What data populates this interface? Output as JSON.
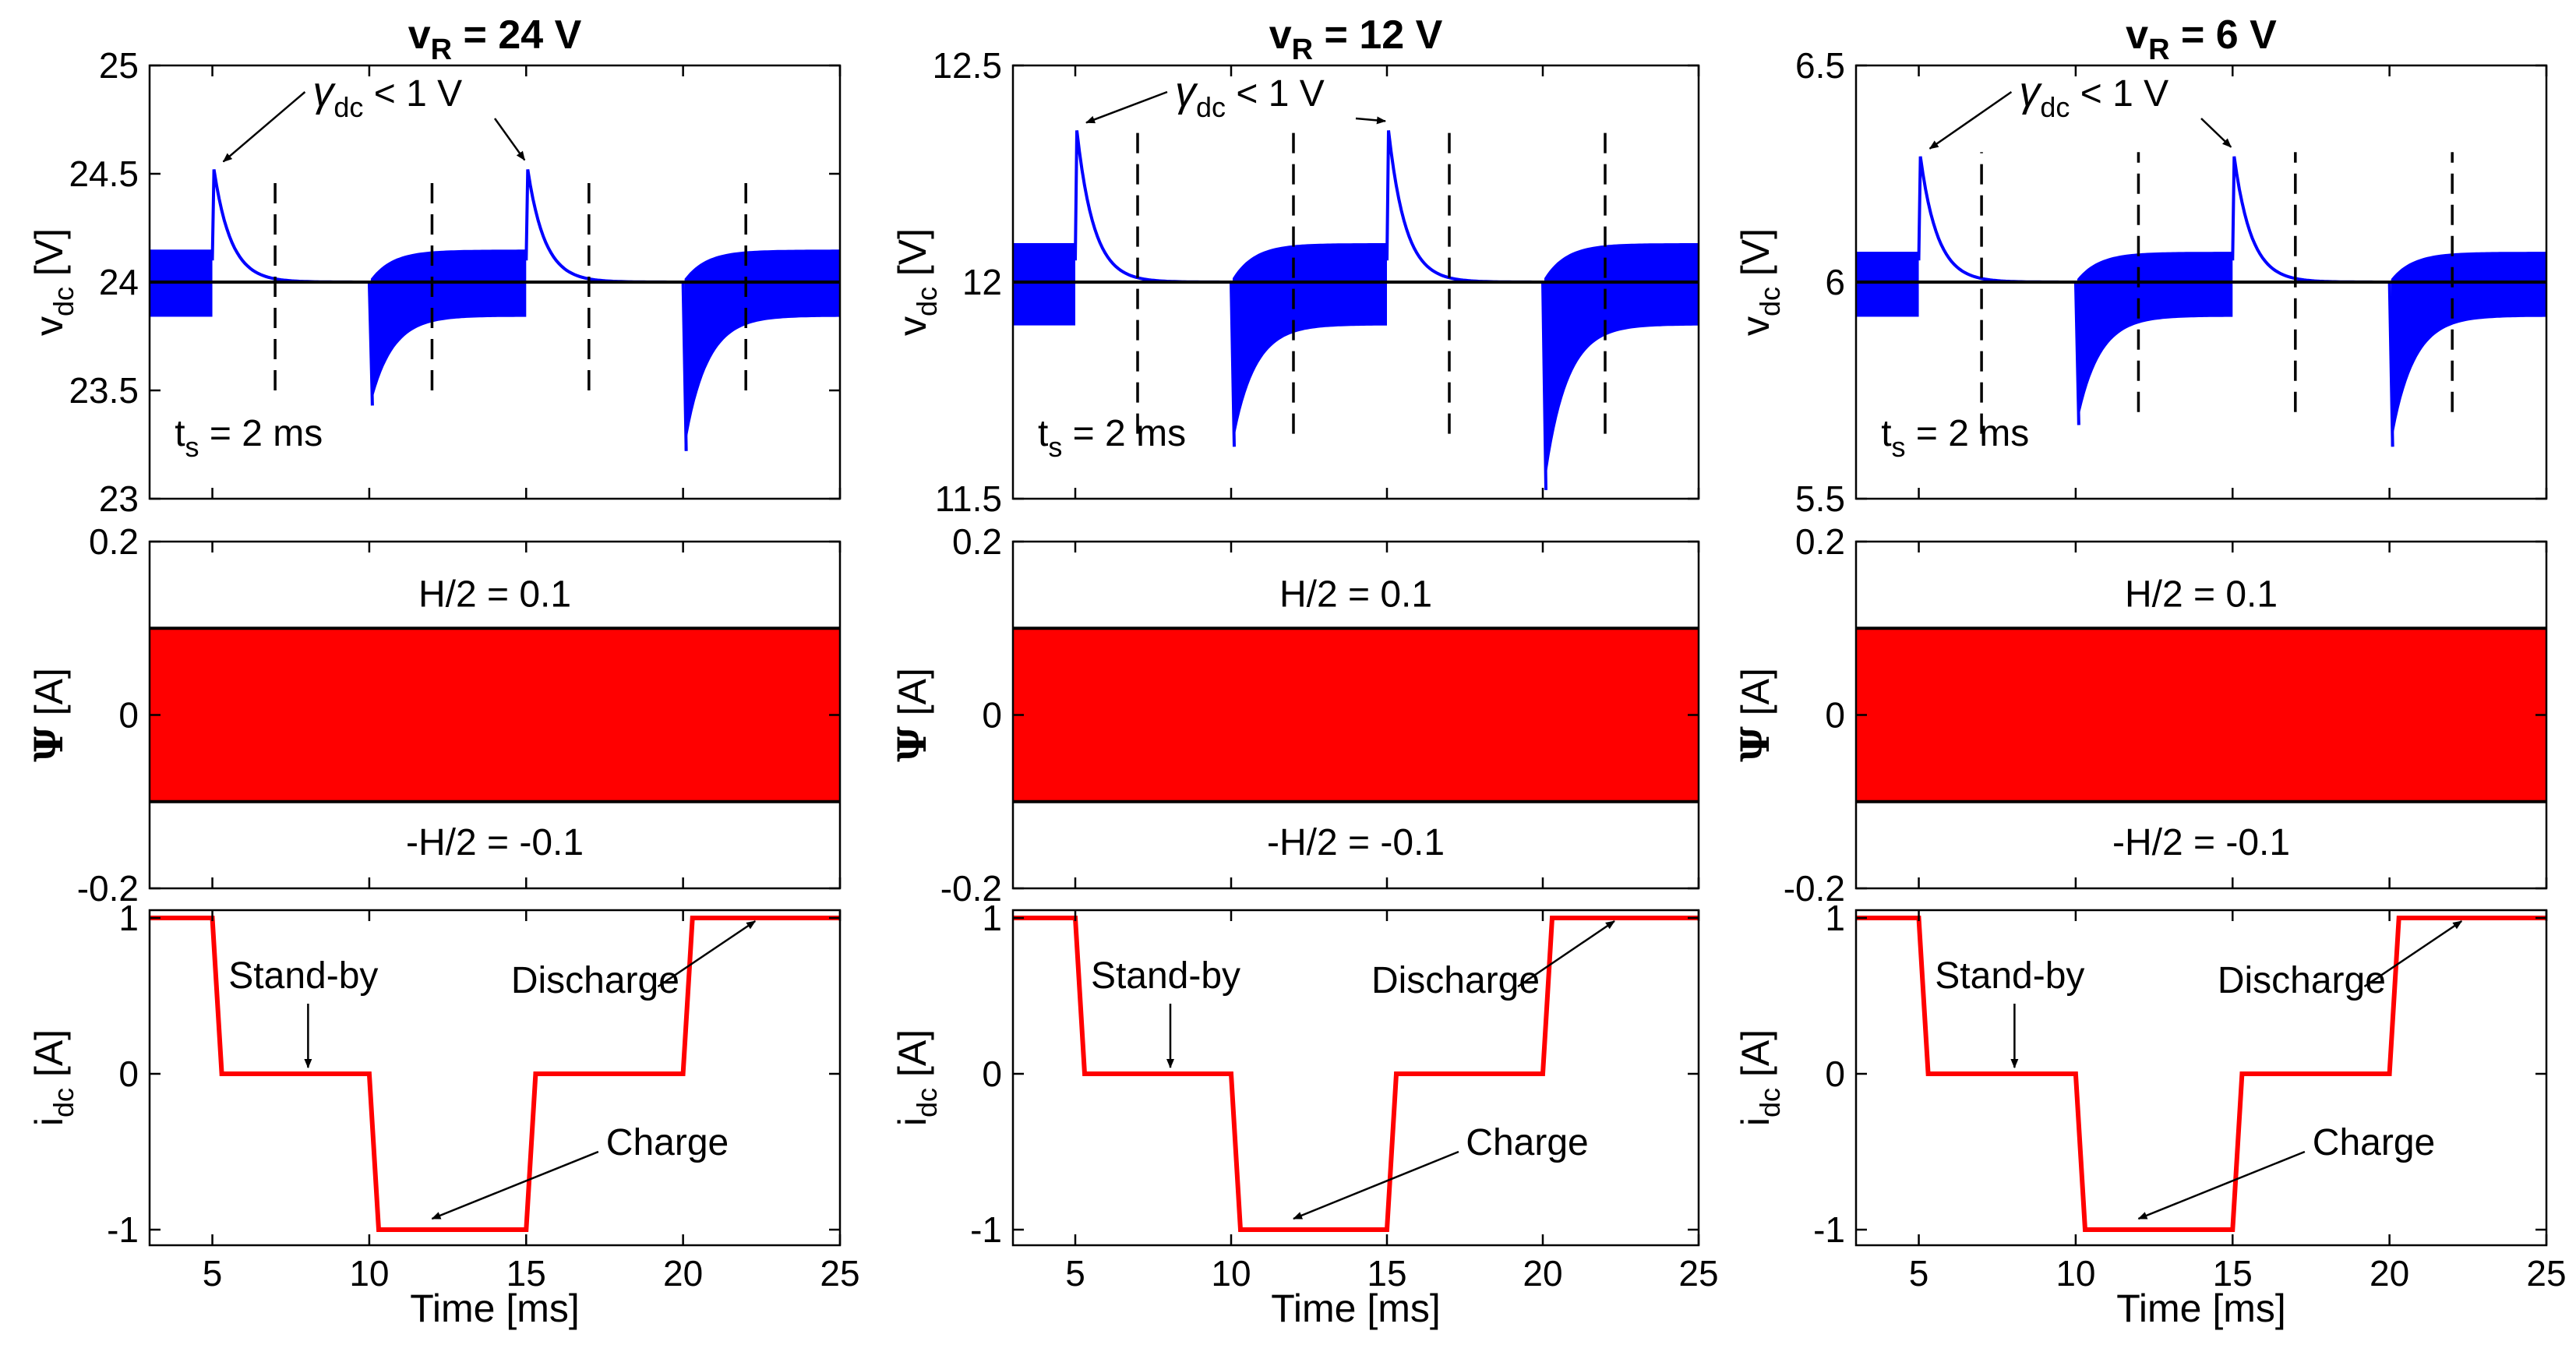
{
  "chart_data": [
    {
      "column": 0,
      "title": {
        "main": "v",
        "sub": "R",
        "rest": " = 24 V"
      },
      "panels": [
        {
          "type": "line",
          "ylabel": {
            "main": "v",
            "sub": "dc",
            "unit": " [V]"
          },
          "xlim": [
            3,
            25
          ],
          "ylim": [
            23,
            25
          ],
          "yticks": [
            {
              "value": 23,
              "label": "23"
            },
            {
              "value": 23.5,
              "label": "23.5"
            },
            {
              "value": 24,
              "label": "24"
            },
            {
              "value": 24.5,
              "label": "24.5"
            },
            {
              "value": 25,
              "label": "25"
            }
          ],
          "reference": 24,
          "ripple": [
            {
              "from": 3,
              "to": 5,
              "lo": 23.84,
              "hi": 24.15
            },
            {
              "from": 20.05,
              "to": 25,
              "lo": 23.84,
              "hi": 24.15
            }
          ],
          "overshoot_peaks": [
            {
              "t": 5.05,
              "v": 24.52
            },
            {
              "t": 15.05,
              "v": 24.52
            }
          ],
          "undershoot_dips": [
            {
              "t": 10.1,
              "v": 23.43
            },
            {
              "t": 20.1,
              "v": 23.22
            }
          ],
          "settle_lines": [
            {
              "t": 7.0,
              "from": 23.5,
              "to": 24.5
            },
            {
              "t": 12.0,
              "from": 23.5,
              "to": 24.5
            },
            {
              "t": 17.0,
              "from": 23.5,
              "to": 24.5
            },
            {
              "t": 22.0,
              "from": 23.5,
              "to": 24.5
            }
          ],
          "annotations": {
            "gamma_main": "γ",
            "gamma_sub": "dc",
            "gamma_rest": " < 1 V",
            "ts_main": "t",
            "ts_sub": "s",
            "ts_rest": " = 2 ms"
          }
        },
        {
          "type": "area",
          "ylabel": {
            "main": "Ψ",
            "unit": " [A]"
          },
          "xlim": [
            3,
            25
          ],
          "ylim": [
            -0.2,
            0.2
          ],
          "yticks": [
            {
              "value": -0.2,
              "label": "-0.2"
            },
            {
              "value": 0,
              "label": "0"
            },
            {
              "value": 0.2,
              "label": "0.2"
            }
          ],
          "band": [
            -0.1,
            0.1
          ],
          "annotations": {
            "upper": "H/2 = 0.1",
            "lower": "-H/2 = -0.1"
          }
        },
        {
          "type": "line",
          "ylabel": {
            "main": "i",
            "sub": "dc",
            "unit": " [A]"
          },
          "xlabel": "Time [ms]",
          "xlim": [
            3,
            25
          ],
          "ylim": [
            -1.1,
            1.05
          ],
          "xticks": [
            {
              "value": 5,
              "label": "5"
            },
            {
              "value": 10,
              "label": "10"
            },
            {
              "value": 15,
              "label": "15"
            },
            {
              "value": 20,
              "label": "20"
            },
            {
              "value": 25,
              "label": "25"
            }
          ],
          "yticks": [
            {
              "value": -1,
              "label": "-1"
            },
            {
              "value": 0,
              "label": "0"
            },
            {
              "value": 1,
              "label": "1"
            }
          ],
          "x": [
            3,
            5,
            5.3,
            10,
            10.3,
            15,
            15.3,
            20,
            20.3,
            25
          ],
          "y": [
            1,
            1,
            0,
            0,
            -1,
            -1,
            0,
            0,
            1,
            1
          ],
          "annotations": {
            "standby": "Stand-by",
            "discharge": "Discharge",
            "charge": "Charge"
          }
        }
      ]
    },
    {
      "column": 1,
      "title": {
        "main": "v",
        "sub": "R",
        "rest": " = 12 V"
      },
      "panels": [
        {
          "type": "line",
          "ylabel": {
            "main": "v",
            "sub": "dc",
            "unit": " [V]"
          },
          "xlim": [
            3,
            25
          ],
          "ylim": [
            11.5,
            12.5
          ],
          "yticks": [
            {
              "value": 11.5,
              "label": "11.5"
            },
            {
              "value": 12,
              "label": "12"
            },
            {
              "value": 12.5,
              "label": "12.5"
            }
          ],
          "reference": 12,
          "ripple": [
            {
              "from": 3,
              "to": 5,
              "lo": 11.9,
              "hi": 12.09
            },
            {
              "from": 20.05,
              "to": 25,
              "lo": 11.9,
              "hi": 12.09
            }
          ],
          "overshoot_peaks": [
            {
              "t": 5.05,
              "v": 12.35
            },
            {
              "t": 15.05,
              "v": 12.35
            }
          ],
          "undershoot_dips": [
            {
              "t": 10.1,
              "v": 11.62
            },
            {
              "t": 20.1,
              "v": 11.52
            }
          ],
          "settle_lines": [
            {
              "t": 7.0,
              "from": 11.65,
              "to": 12.35
            },
            {
              "t": 12.0,
              "from": 11.65,
              "to": 12.35
            },
            {
              "t": 17.0,
              "from": 11.65,
              "to": 12.35
            },
            {
              "t": 22.0,
              "from": 11.65,
              "to": 12.35
            }
          ],
          "annotations": {
            "gamma_main": "γ",
            "gamma_sub": "dc",
            "gamma_rest": " < 1 V",
            "ts_main": "t",
            "ts_sub": "s",
            "ts_rest": " = 2 ms"
          }
        },
        {
          "type": "area",
          "ylabel": {
            "main": "Ψ",
            "unit": " [A]"
          },
          "xlim": [
            3,
            25
          ],
          "ylim": [
            -0.2,
            0.2
          ],
          "yticks": [
            {
              "value": -0.2,
              "label": "-0.2"
            },
            {
              "value": 0,
              "label": "0"
            },
            {
              "value": 0.2,
              "label": "0.2"
            }
          ],
          "band": [
            -0.1,
            0.1
          ],
          "annotations": {
            "upper": "H/2 = 0.1",
            "lower": "-H/2 = -0.1"
          }
        },
        {
          "type": "line",
          "ylabel": {
            "main": "i",
            "sub": "dc",
            "unit": " [A]"
          },
          "xlabel": "Time [ms]",
          "xlim": [
            3,
            25
          ],
          "ylim": [
            -1.1,
            1.05
          ],
          "xticks": [
            {
              "value": 5,
              "label": "5"
            },
            {
              "value": 10,
              "label": "10"
            },
            {
              "value": 15,
              "label": "15"
            },
            {
              "value": 20,
              "label": "20"
            },
            {
              "value": 25,
              "label": "25"
            }
          ],
          "yticks": [
            {
              "value": -1,
              "label": "-1"
            },
            {
              "value": 0,
              "label": "0"
            },
            {
              "value": 1,
              "label": "1"
            }
          ],
          "x": [
            3,
            5,
            5.3,
            10,
            10.3,
            15,
            15.3,
            20,
            20.3,
            25
          ],
          "y": [
            1,
            1,
            0,
            0,
            -1,
            -1,
            0,
            0,
            1,
            1
          ],
          "annotations": {
            "standby": "Stand-by",
            "discharge": "Discharge",
            "charge": "Charge"
          }
        }
      ]
    },
    {
      "column": 2,
      "title": {
        "main": "v",
        "sub": "R",
        "rest": " = 6 V"
      },
      "panels": [
        {
          "type": "line",
          "ylabel": {
            "main": "v",
            "sub": "dc",
            "unit": " [V]"
          },
          "xlim": [
            3,
            25
          ],
          "ylim": [
            5.5,
            6.5
          ],
          "yticks": [
            {
              "value": 5.5,
              "label": "5.5"
            },
            {
              "value": 6,
              "label": "6"
            },
            {
              "value": 6.5,
              "label": "6.5"
            }
          ],
          "reference": 6,
          "ripple": [
            {
              "from": 3,
              "to": 5,
              "lo": 5.92,
              "hi": 6.07
            },
            {
              "from": 20.05,
              "to": 25,
              "lo": 5.92,
              "hi": 6.07
            }
          ],
          "overshoot_peaks": [
            {
              "t": 5.05,
              "v": 6.29
            },
            {
              "t": 15.05,
              "v": 6.29
            }
          ],
          "undershoot_dips": [
            {
              "t": 10.1,
              "v": 5.67
            },
            {
              "t": 20.1,
              "v": 5.62
            }
          ],
          "settle_lines": [
            {
              "t": 7.0,
              "from": 5.65,
              "to": 6.3
            },
            {
              "t": 12.0,
              "from": 5.7,
              "to": 6.3
            },
            {
              "t": 17.0,
              "from": 5.7,
              "to": 6.3
            },
            {
              "t": 22.0,
              "from": 5.7,
              "to": 6.3
            }
          ],
          "annotations": {
            "gamma_main": "γ",
            "gamma_sub": "dc",
            "gamma_rest": " < 1 V",
            "ts_main": "t",
            "ts_sub": "s",
            "ts_rest": " = 2 ms"
          }
        },
        {
          "type": "area",
          "ylabel": {
            "main": "Ψ",
            "unit": " [A]"
          },
          "xlim": [
            3,
            25
          ],
          "ylim": [
            -0.2,
            0.2
          ],
          "yticks": [
            {
              "value": -0.2,
              "label": "-0.2"
            },
            {
              "value": 0,
              "label": "0"
            },
            {
              "value": 0.2,
              "label": "0.2"
            }
          ],
          "band": [
            -0.1,
            0.1
          ],
          "annotations": {
            "upper": "H/2 = 0.1",
            "lower": "-H/2 = -0.1"
          }
        },
        {
          "type": "line",
          "ylabel": {
            "main": "i",
            "sub": "dc",
            "unit": " [A]"
          },
          "xlabel": "Time [ms]",
          "xlim": [
            3,
            25
          ],
          "ylim": [
            -1.1,
            1.05
          ],
          "xticks": [
            {
              "value": 5,
              "label": "5"
            },
            {
              "value": 10,
              "label": "10"
            },
            {
              "value": 15,
              "label": "15"
            },
            {
              "value": 20,
              "label": "20"
            },
            {
              "value": 25,
              "label": "25"
            }
          ],
          "yticks": [
            {
              "value": -1,
              "label": "-1"
            },
            {
              "value": 0,
              "label": "0"
            },
            {
              "value": 1,
              "label": "1"
            }
          ],
          "x": [
            3,
            5,
            5.3,
            10,
            10.3,
            15,
            15.3,
            20,
            20.3,
            25
          ],
          "y": [
            1,
            1,
            0,
            0,
            -1,
            -1,
            0,
            0,
            1,
            1
          ],
          "annotations": {
            "standby": "Stand-by",
            "discharge": "Discharge",
            "charge": "Charge"
          }
        }
      ]
    }
  ],
  "colors": {
    "vdc": "#0000ff",
    "band": "#ff0000",
    "idc": "#ff0000",
    "reference": "#000000",
    "axis": "#000000"
  }
}
